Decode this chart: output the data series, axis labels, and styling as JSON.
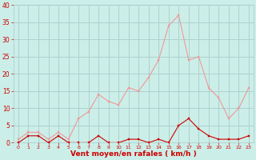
{
  "hours": [
    0,
    1,
    2,
    3,
    4,
    5,
    6,
    7,
    8,
    9,
    10,
    11,
    12,
    13,
    14,
    15,
    16,
    17,
    18,
    19,
    20,
    21,
    22,
    23
  ],
  "wind_avg": [
    0,
    2,
    2,
    0,
    2,
    0,
    0,
    0,
    2,
    0,
    0,
    1,
    1,
    0,
    1,
    0,
    5,
    7,
    4,
    2,
    1,
    1,
    1,
    2
  ],
  "wind_gust": [
    1,
    3,
    3,
    1,
    3,
    1,
    7,
    9,
    14,
    12,
    11,
    16,
    15,
    19,
    24,
    34,
    37,
    24,
    25,
    16,
    13,
    7,
    10,
    16
  ],
  "bg_color": "#cceee8",
  "grid_color": "#aacccc",
  "avg_color": "#cc0000",
  "gust_color": "#ee9999",
  "xlabel": "Vent moyen/en rafales ( km/h )",
  "xlabel_color": "#cc0000",
  "tick_color": "#cc0000",
  "ylim": [
    0,
    40
  ],
  "yticks": [
    0,
    5,
    10,
    15,
    20,
    25,
    30,
    35,
    40
  ],
  "xlim": [
    -0.5,
    23.5
  ]
}
